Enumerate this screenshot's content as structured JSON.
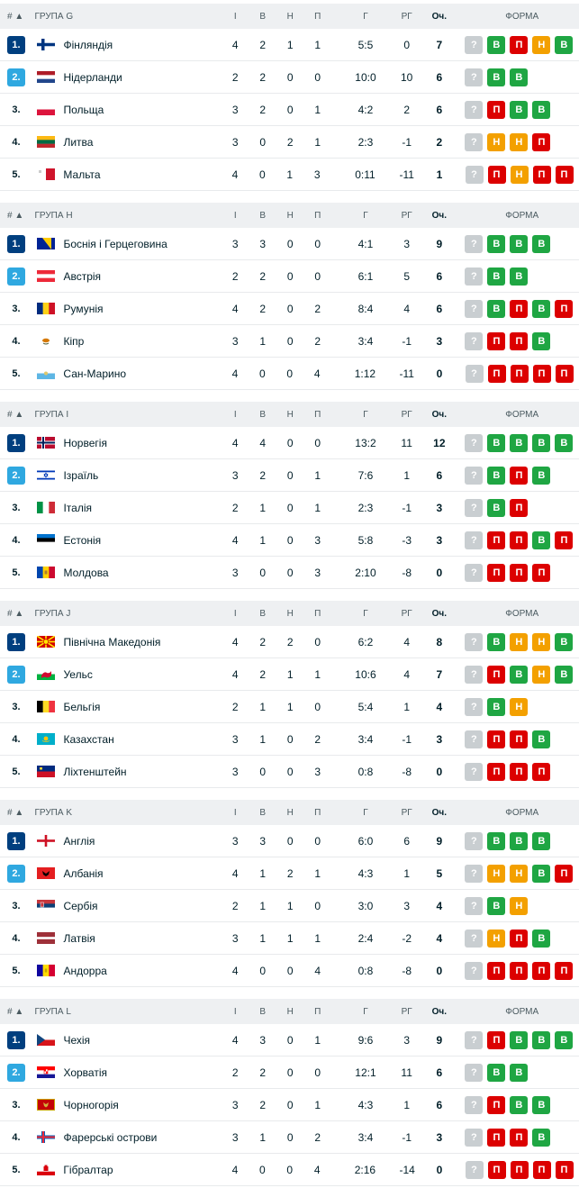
{
  "header": {
    "rank": "# ▲",
    "played": "І",
    "won": "В",
    "drawn": "Н",
    "lost": "П",
    "goals": "Г",
    "gd": "РГ",
    "pts": "Оч.",
    "form": "ФОРМА"
  },
  "colors": {
    "qualified": "#003f7f",
    "playoff": "#2fa8e0",
    "win": "#1fa643",
    "loss": "#dc0000",
    "draw": "#f3a000",
    "unknown": "#c9ced1"
  },
  "groups": [
    {
      "title": "Група G",
      "rows": [
        {
          "rank": "1.",
          "team": "Фінляндія",
          "flag": "fi",
          "p": "4",
          "w": "2",
          "d": "1",
          "l": "1",
          "goals": "5:5",
          "gd": "0",
          "pts": "7",
          "form": [
            "?",
            "В",
            "П",
            "Н",
            "В"
          ]
        },
        {
          "rank": "2.",
          "team": "Нідерланди",
          "flag": "nl",
          "p": "2",
          "w": "2",
          "d": "0",
          "l": "0",
          "goals": "10:0",
          "gd": "10",
          "pts": "6",
          "form": [
            "?",
            "В",
            "В"
          ]
        },
        {
          "rank": "3.",
          "team": "Польща",
          "flag": "pl",
          "p": "3",
          "w": "2",
          "d": "0",
          "l": "1",
          "goals": "4:2",
          "gd": "2",
          "pts": "6",
          "form": [
            "?",
            "П",
            "В",
            "В"
          ]
        },
        {
          "rank": "4.",
          "team": "Литва",
          "flag": "lt",
          "p": "3",
          "w": "0",
          "d": "2",
          "l": "1",
          "goals": "2:3",
          "gd": "-1",
          "pts": "2",
          "form": [
            "?",
            "Н",
            "Н",
            "П"
          ]
        },
        {
          "rank": "5.",
          "team": "Мальта",
          "flag": "mt",
          "p": "4",
          "w": "0",
          "d": "1",
          "l": "3",
          "goals": "0:11",
          "gd": "-11",
          "pts": "1",
          "form": [
            "?",
            "П",
            "Н",
            "П",
            "П"
          ]
        }
      ]
    },
    {
      "title": "Група H",
      "rows": [
        {
          "rank": "1.",
          "team": "Боснія і Герцеговина",
          "flag": "ba",
          "p": "3",
          "w": "3",
          "d": "0",
          "l": "0",
          "goals": "4:1",
          "gd": "3",
          "pts": "9",
          "form": [
            "?",
            "В",
            "В",
            "В"
          ]
        },
        {
          "rank": "2.",
          "team": "Австрія",
          "flag": "at",
          "p": "2",
          "w": "2",
          "d": "0",
          "l": "0",
          "goals": "6:1",
          "gd": "5",
          "pts": "6",
          "form": [
            "?",
            "В",
            "В"
          ]
        },
        {
          "rank": "3.",
          "team": "Румунія",
          "flag": "ro",
          "p": "4",
          "w": "2",
          "d": "0",
          "l": "2",
          "goals": "8:4",
          "gd": "4",
          "pts": "6",
          "form": [
            "?",
            "В",
            "П",
            "В",
            "П"
          ]
        },
        {
          "rank": "4.",
          "team": "Кіпр",
          "flag": "cy",
          "p": "3",
          "w": "1",
          "d": "0",
          "l": "2",
          "goals": "3:4",
          "gd": "-1",
          "pts": "3",
          "form": [
            "?",
            "П",
            "П",
            "В"
          ]
        },
        {
          "rank": "5.",
          "team": "Сан-Марино",
          "flag": "sm",
          "p": "4",
          "w": "0",
          "d": "0",
          "l": "4",
          "goals": "1:12",
          "gd": "-11",
          "pts": "0",
          "form": [
            "?",
            "П",
            "П",
            "П",
            "П"
          ]
        }
      ]
    },
    {
      "title": "Група I",
      "rows": [
        {
          "rank": "1.",
          "team": "Норвегія",
          "flag": "no",
          "p": "4",
          "w": "4",
          "d": "0",
          "l": "0",
          "goals": "13:2",
          "gd": "11",
          "pts": "12",
          "form": [
            "?",
            "В",
            "В",
            "В",
            "В"
          ]
        },
        {
          "rank": "2.",
          "team": "Ізраїль",
          "flag": "il",
          "p": "3",
          "w": "2",
          "d": "0",
          "l": "1",
          "goals": "7:6",
          "gd": "1",
          "pts": "6",
          "form": [
            "?",
            "В",
            "П",
            "В"
          ]
        },
        {
          "rank": "3.",
          "team": "Італія",
          "flag": "it",
          "p": "2",
          "w": "1",
          "d": "0",
          "l": "1",
          "goals": "2:3",
          "gd": "-1",
          "pts": "3",
          "form": [
            "?",
            "В",
            "П"
          ]
        },
        {
          "rank": "4.",
          "team": "Естонія",
          "flag": "ee",
          "p": "4",
          "w": "1",
          "d": "0",
          "l": "3",
          "goals": "5:8",
          "gd": "-3",
          "pts": "3",
          "form": [
            "?",
            "П",
            "П",
            "В",
            "П"
          ]
        },
        {
          "rank": "5.",
          "team": "Молдова",
          "flag": "md",
          "p": "3",
          "w": "0",
          "d": "0",
          "l": "3",
          "goals": "2:10",
          "gd": "-8",
          "pts": "0",
          "form": [
            "?",
            "П",
            "П",
            "П"
          ]
        }
      ]
    },
    {
      "title": "Група J",
      "rows": [
        {
          "rank": "1.",
          "team": "Північна Македонія",
          "flag": "mk",
          "p": "4",
          "w": "2",
          "d": "2",
          "l": "0",
          "goals": "6:2",
          "gd": "4",
          "pts": "8",
          "form": [
            "?",
            "В",
            "Н",
            "Н",
            "В"
          ]
        },
        {
          "rank": "2.",
          "team": "Уельс",
          "flag": "wales",
          "p": "4",
          "w": "2",
          "d": "1",
          "l": "1",
          "goals": "10:6",
          "gd": "4",
          "pts": "7",
          "form": [
            "?",
            "П",
            "В",
            "Н",
            "В"
          ]
        },
        {
          "rank": "3.",
          "team": "Бельгія",
          "flag": "be",
          "p": "2",
          "w": "1",
          "d": "1",
          "l": "0",
          "goals": "5:4",
          "gd": "1",
          "pts": "4",
          "form": [
            "?",
            "В",
            "Н"
          ]
        },
        {
          "rank": "4.",
          "team": "Казахстан",
          "flag": "kz",
          "p": "3",
          "w": "1",
          "d": "0",
          "l": "2",
          "goals": "3:4",
          "gd": "-1",
          "pts": "3",
          "form": [
            "?",
            "П",
            "П",
            "В"
          ]
        },
        {
          "rank": "5.",
          "team": "Ліхтенштейн",
          "flag": "li",
          "p": "3",
          "w": "0",
          "d": "0",
          "l": "3",
          "goals": "0:8",
          "gd": "-8",
          "pts": "0",
          "form": [
            "?",
            "П",
            "П",
            "П"
          ]
        }
      ]
    },
    {
      "title": "Група K",
      "rows": [
        {
          "rank": "1.",
          "team": "Англія",
          "flag": "england",
          "p": "3",
          "w": "3",
          "d": "0",
          "l": "0",
          "goals": "6:0",
          "gd": "6",
          "pts": "9",
          "form": [
            "?",
            "В",
            "В",
            "В"
          ]
        },
        {
          "rank": "2.",
          "team": "Албанія",
          "flag": "al",
          "p": "4",
          "w": "1",
          "d": "2",
          "l": "1",
          "goals": "4:3",
          "gd": "1",
          "pts": "5",
          "form": [
            "?",
            "Н",
            "Н",
            "В",
            "П"
          ]
        },
        {
          "rank": "3.",
          "team": "Сербія",
          "flag": "rs",
          "p": "2",
          "w": "1",
          "d": "1",
          "l": "0",
          "goals": "3:0",
          "gd": "3",
          "pts": "4",
          "form": [
            "?",
            "В",
            "Н"
          ]
        },
        {
          "rank": "4.",
          "team": "Латвія",
          "flag": "lv",
          "p": "3",
          "w": "1",
          "d": "1",
          "l": "1",
          "goals": "2:4",
          "gd": "-2",
          "pts": "4",
          "form": [
            "?",
            "Н",
            "П",
            "В"
          ]
        },
        {
          "rank": "5.",
          "team": "Андорра",
          "flag": "ad",
          "p": "4",
          "w": "0",
          "d": "0",
          "l": "4",
          "goals": "0:8",
          "gd": "-8",
          "pts": "0",
          "form": [
            "?",
            "П",
            "П",
            "П",
            "П"
          ]
        }
      ]
    },
    {
      "title": "Група L",
      "rows": [
        {
          "rank": "1.",
          "team": "Чехія",
          "flag": "cz",
          "p": "4",
          "w": "3",
          "d": "0",
          "l": "1",
          "goals": "9:6",
          "gd": "3",
          "pts": "9",
          "form": [
            "?",
            "П",
            "В",
            "В",
            "В"
          ]
        },
        {
          "rank": "2.",
          "team": "Хорватія",
          "flag": "hr",
          "p": "2",
          "w": "2",
          "d": "0",
          "l": "0",
          "goals": "12:1",
          "gd": "11",
          "pts": "6",
          "form": [
            "?",
            "В",
            "В"
          ]
        },
        {
          "rank": "3.",
          "team": "Чорногорія",
          "flag": "me",
          "p": "3",
          "w": "2",
          "d": "0",
          "l": "1",
          "goals": "4:3",
          "gd": "1",
          "pts": "6",
          "form": [
            "?",
            "П",
            "В",
            "В"
          ]
        },
        {
          "rank": "4.",
          "team": "Фарерські острови",
          "flag": "fo",
          "p": "3",
          "w": "1",
          "d": "0",
          "l": "2",
          "goals": "3:4",
          "gd": "-1",
          "pts": "3",
          "form": [
            "?",
            "П",
            "П",
            "В"
          ]
        },
        {
          "rank": "5.",
          "team": "Гібралтар",
          "flag": "gi",
          "p": "4",
          "w": "0",
          "d": "0",
          "l": "4",
          "goals": "2:16",
          "gd": "-14",
          "pts": "0",
          "form": [
            "?",
            "П",
            "П",
            "П",
            "П"
          ]
        }
      ]
    }
  ]
}
